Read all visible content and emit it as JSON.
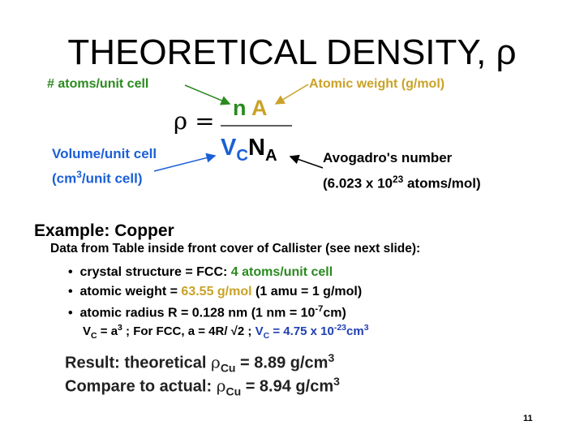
{
  "title": "THEORETICAL DENSITY, ρ",
  "formula": {
    "rho": "ρ",
    "equals": "=",
    "n": "n",
    "A": "A",
    "V": "V",
    "c": "C",
    "N": "N",
    "NA_sub": "A"
  },
  "labels": {
    "atoms": "# atoms/unit cell",
    "atomic_weight": "Atomic weight (g/mol)",
    "volume_1": "Volume/unit cell",
    "volume_2a": "(cm",
    "volume_2sup": "3",
    "volume_2b": "/unit cell)",
    "avogadro_1": "Avogadro's number",
    "avogadro_2a": "(6.023 x 10",
    "avogadro_2sup": "23",
    "avogadro_2b": " atoms/mol)"
  },
  "example": {
    "heading": "Example:  Copper",
    "source": "Data from Table inside front cover of Callister (see next slide):",
    "bullet1_a": "crystal structure = FCC:  ",
    "bullet1_b": "4 atoms/unit cell",
    "bullet2_a": "atomic weight = ",
    "bullet2_b": "63.55 g/mol",
    "bullet2_c": " (1 amu = 1 g/mol)",
    "bullet3_a": "atomic radius R = 0.128 nm   (1 nm = 10",
    "bullet3_sup": "-7",
    "bullet3_b": "cm)",
    "vc_V": "V",
    "vc_sub": "C",
    "vc_a": " = a",
    "vc_sup": "3",
    "vc_b": " ; For FCC,  a = 4R/ √2 ;  ",
    "vc_res_V": "V",
    "vc_res_sub": "C",
    "vc_res_a": " = 4.75 x 10",
    "vc_res_sup": "-23",
    "vc_res_b": "cm",
    "vc_res_sup2": "3"
  },
  "result": {
    "line1_a": "Result:  theoretical ",
    "rho": "ρ",
    "cu": "Cu",
    "line1_b": " = 8.89 g/cm",
    "sup": "3",
    "line2_a": "Compare to actual: ",
    "line2_b": " = 8.94 g/cm"
  },
  "page_number": "11",
  "colors": {
    "green": "#2a8a1e",
    "gold": "#c9a227",
    "blue": "#1a5fd6",
    "dark_blue": "#1f3fb0"
  }
}
